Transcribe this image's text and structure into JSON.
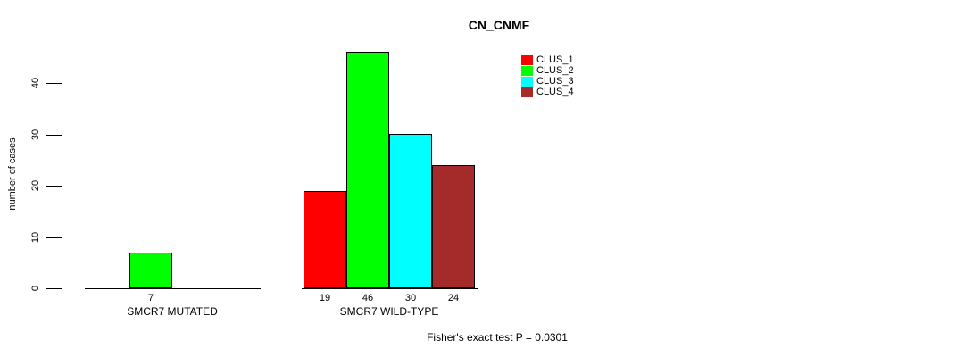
{
  "chart_data": {
    "type": "bar",
    "title": "CN_CNMF",
    "ylabel": "number of cases",
    "yticks": [
      0,
      10,
      20,
      30,
      40
    ],
    "ylim": [
      0,
      46
    ],
    "grid": false,
    "legend_position": "top-right",
    "clusters": [
      {
        "name": "CLUS_1",
        "color": "#FF0000"
      },
      {
        "name": "CLUS_2",
        "color": "#00FF00"
      },
      {
        "name": "CLUS_3",
        "color": "#00FFFF"
      },
      {
        "name": "CLUS_4",
        "color": "#A52A2A"
      }
    ],
    "groups": [
      {
        "label": "SMCR7 MUTATED",
        "bars": [
          {
            "cluster": "CLUS_2",
            "value": 7
          }
        ]
      },
      {
        "label": "SMCR7 WILD-TYPE",
        "bars": [
          {
            "cluster": "CLUS_1",
            "value": 19
          },
          {
            "cluster": "CLUS_2",
            "value": 46
          },
          {
            "cluster": "CLUS_3",
            "value": 30
          },
          {
            "cluster": "CLUS_4",
            "value": 24
          }
        ]
      }
    ],
    "annotation": "Fisher's exact test P = 0.0301"
  }
}
